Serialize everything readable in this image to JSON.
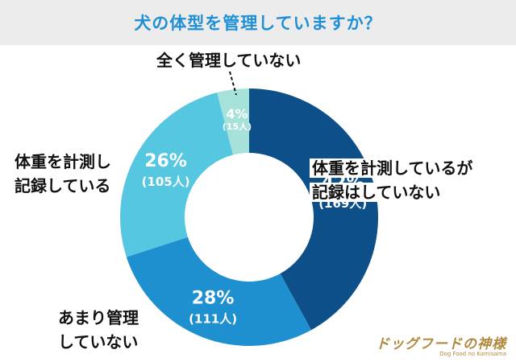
{
  "header": {
    "title": "犬の体型を管理していますか？"
  },
  "chart_data": {
    "type": "pie",
    "title": "犬の体型を管理していますか？",
    "slices": [
      {
        "label_lines": [
          "体重を計測しているが",
          "記録はしていない"
        ],
        "percent": 42,
        "count_text": "(169人)",
        "color": "#0d4f88"
      },
      {
        "label_lines": [
          "あまり管理",
          "していない"
        ],
        "percent": 28,
        "count_text": "(111人)",
        "color": "#1e8fcf"
      },
      {
        "label_lines": [
          "体重を計測し",
          "記録している"
        ],
        "percent": 26,
        "count_text": "(105人)",
        "color": "#56c7e0"
      },
      {
        "label_lines": [
          "全く管理していない"
        ],
        "percent": 4,
        "count_text": "(15人)",
        "color": "#a6e2d9"
      }
    ]
  },
  "watermark": {
    "main": "ドッグフードの神様",
    "sub": "Dog Food no Kamisama"
  }
}
